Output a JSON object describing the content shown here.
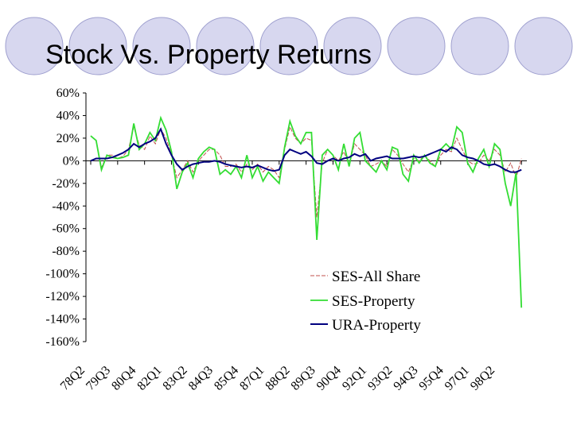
{
  "slide": {
    "title": "Stock Vs. Property Returns"
  },
  "colors": {
    "circle_fill": "#d7d7ef",
    "circle_stroke": "#9fa0cf"
  },
  "chart_data": {
    "type": "line",
    "title": "",
    "xlabel": "",
    "ylabel": "",
    "ylim": [
      -160,
      60
    ],
    "y_unit": "%",
    "y_ticks": [
      "60%",
      "40%",
      "20%",
      "0%",
      "-20%",
      "-40%",
      "-60%",
      "-80%",
      "-100%",
      "-120%",
      "-140%",
      "-160%"
    ],
    "y_tick_values": [
      60,
      40,
      20,
      0,
      -20,
      -40,
      -60,
      -80,
      -100,
      -120,
      -140,
      -160
    ],
    "x_tick_labels": [
      "78Q2",
      "79Q3",
      "80Q4",
      "82Q1",
      "83Q2",
      "84Q3",
      "85Q4",
      "87Q1",
      "88Q2",
      "89Q3",
      "90Q4",
      "92Q1",
      "93Q2",
      "94Q3",
      "95Q4",
      "97Q1",
      "98Q2"
    ],
    "x_period_count": 81,
    "grid": false,
    "legend_position": "bottom-right",
    "series": [
      {
        "name": "SES-All Share",
        "color": "#c0504d",
        "dashed": true,
        "values": [
          22,
          18,
          -6,
          5,
          5,
          2,
          4,
          10,
          30,
          14,
          10,
          22,
          15,
          28,
          20,
          5,
          -15,
          -8,
          0,
          -10,
          0,
          5,
          10,
          10,
          5,
          -5,
          -5,
          -3,
          -10,
          -3,
          -8,
          -3,
          -10,
          -5,
          -8,
          -15,
          10,
          30,
          20,
          15,
          20,
          18,
          -50,
          -2,
          10,
          5,
          0,
          8,
          -3,
          15,
          10,
          5,
          -5,
          -3,
          0,
          -5,
          10,
          5,
          -3,
          -10,
          2,
          0,
          5,
          0,
          -5,
          5,
          10,
          8,
          20,
          10,
          0,
          -3,
          -2,
          5,
          0,
          10,
          5,
          -10,
          -2,
          -15,
          2
        ]
      },
      {
        "name": "SES-Property",
        "color": "#33dd33",
        "dashed": false,
        "values": [
          22,
          18,
          -8,
          5,
          3,
          2,
          3,
          5,
          33,
          10,
          15,
          25,
          18,
          38,
          27,
          8,
          -25,
          -10,
          -2,
          -15,
          2,
          8,
          12,
          10,
          -12,
          -8,
          -12,
          -5,
          -15,
          5,
          -15,
          -5,
          -18,
          -10,
          -15,
          -20,
          12,
          35,
          22,
          15,
          25,
          25,
          -70,
          5,
          10,
          5,
          -8,
          15,
          -5,
          20,
          25,
          0,
          -5,
          -10,
          0,
          -8,
          12,
          10,
          -12,
          -18,
          5,
          -2,
          5,
          -2,
          -5,
          10,
          15,
          10,
          30,
          25,
          -2,
          -10,
          2,
          10,
          -5,
          15,
          10,
          -20,
          -40,
          -10,
          -130
        ]
      },
      {
        "name": "URA-Property",
        "color": "#00007f",
        "dashed": false,
        "values": [
          0,
          2,
          2,
          2,
          3,
          5,
          7,
          10,
          15,
          12,
          15,
          17,
          20,
          28,
          15,
          5,
          -3,
          -8,
          -5,
          -3,
          -2,
          -1,
          -1,
          0,
          -1,
          -3,
          -4,
          -5,
          -6,
          -5,
          -6,
          -4,
          -6,
          -8,
          -9,
          -8,
          5,
          10,
          8,
          6,
          8,
          4,
          -2,
          -3,
          0,
          2,
          0,
          2,
          3,
          6,
          4,
          6,
          0,
          2,
          3,
          4,
          2,
          2,
          2,
          3,
          4,
          3,
          4,
          6,
          8,
          10,
          8,
          12,
          10,
          5,
          3,
          2,
          0,
          -3,
          -4,
          -3,
          -5,
          -8,
          -10,
          -10,
          -8
        ]
      }
    ]
  }
}
